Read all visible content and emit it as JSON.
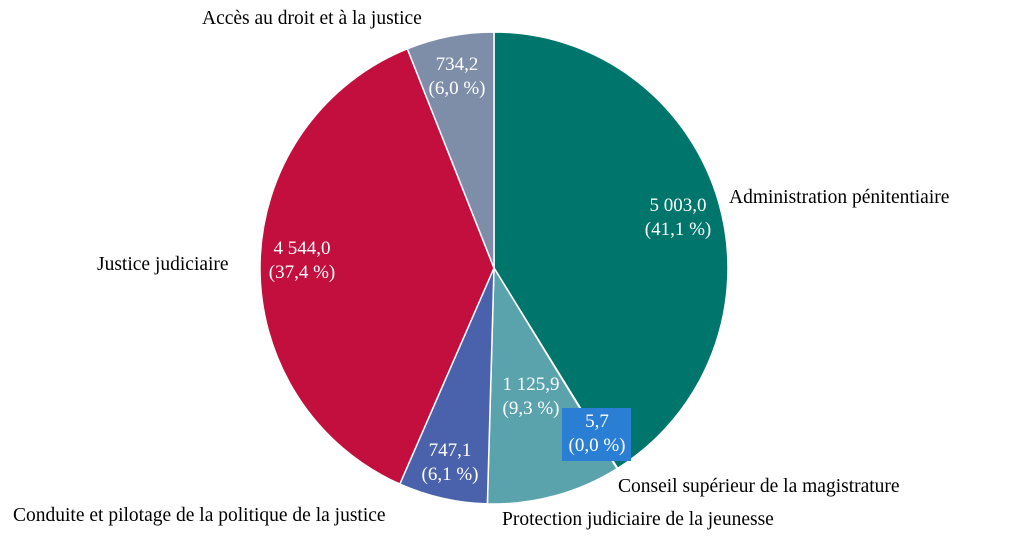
{
  "chart_data": {
    "type": "pie",
    "title": "",
    "start_angle_deg": 0,
    "direction": "clockwise",
    "slices": [
      {
        "id": "administration-penitentiaire",
        "label": "Administration pénitentiaire",
        "value": 5003.0,
        "value_text": "5 003,0",
        "percent_text": "(41,1 %)",
        "color": "#00756b"
      },
      {
        "id": "conseil-superieur",
        "label": "Conseil supérieur de la magistrature",
        "value": 5.7,
        "value_text": "5,7",
        "percent_text": "(0,0 %)",
        "color": "#2a7fd4"
      },
      {
        "id": "protection-judiciaire",
        "label": "Protection judiciaire de la jeunesse",
        "value": 1125.9,
        "value_text": "1 125,9",
        "percent_text": "(9,3 %)",
        "color": "#5ba3ac"
      },
      {
        "id": "conduite-pilotage",
        "label": "Conduite et pilotage de la politique de la justice",
        "value": 747.1,
        "value_text": "747,1",
        "percent_text": "(6,1 %)",
        "color": "#4a62ab"
      },
      {
        "id": "justice-judiciaire",
        "label": "Justice judiciaire",
        "value": 4544.0,
        "value_text": "4 544,0",
        "percent_text": "(37,4 %)",
        "color": "#c20f3e"
      },
      {
        "id": "acces-au-droit",
        "label": "Accès au droit et à la justice",
        "value": 734.2,
        "value_text": "734,2",
        "percent_text": "(6,0 %)",
        "color": "#7f8ea8"
      }
    ]
  }
}
